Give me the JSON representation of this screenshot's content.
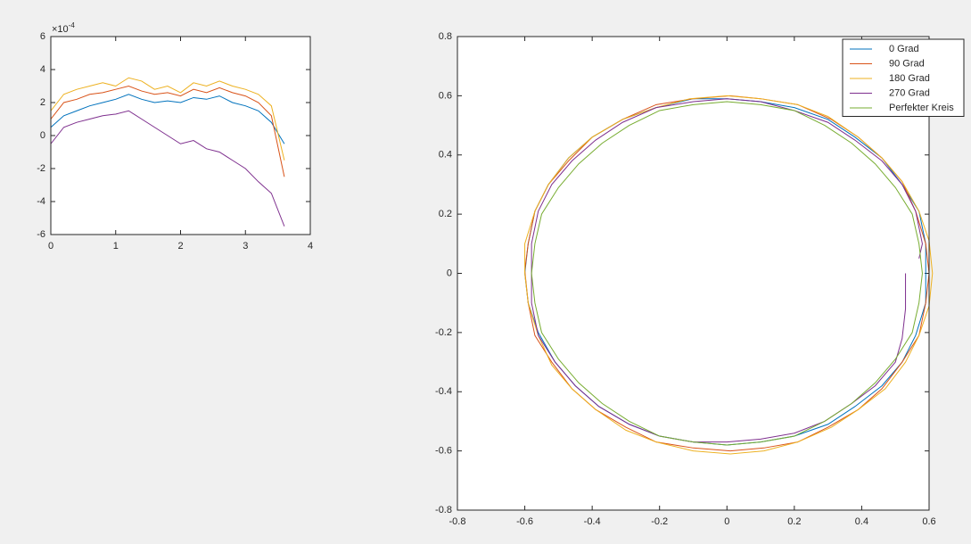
{
  "chart_data": [
    {
      "type": "line",
      "x": [
        0,
        0.2,
        0.4,
        0.6,
        0.8,
        1.0,
        1.2,
        1.4,
        1.6,
        1.8,
        2.0,
        2.2,
        2.4,
        2.6,
        2.8,
        3.0,
        3.2,
        3.4,
        3.6
      ],
      "series": [
        {
          "color": "#0072bd",
          "values": [
            0.5,
            1.2,
            1.5,
            1.8,
            2,
            2.2,
            2.5,
            2.2,
            2,
            2.1,
            2,
            2.3,
            2.2,
            2.4,
            2,
            1.8,
            1.5,
            0.8,
            -0.5
          ]
        },
        {
          "color": "#d95319",
          "values": [
            1,
            2,
            2.2,
            2.5,
            2.6,
            2.8,
            3,
            2.7,
            2.5,
            2.6,
            2.4,
            2.8,
            2.6,
            2.9,
            2.6,
            2.4,
            2,
            1.2,
            -2.5
          ]
        },
        {
          "color": "#edb120",
          "values": [
            1.5,
            2.5,
            2.8,
            3,
            3.2,
            3,
            3.5,
            3.3,
            2.8,
            3,
            2.6,
            3.2,
            3,
            3.3,
            3,
            2.8,
            2.5,
            1.8,
            -1.5
          ]
        },
        {
          "color": "#7e2f8e",
          "values": [
            -0.5,
            0.5,
            0.8,
            1,
            1.2,
            1.3,
            1.5,
            1,
            0.5,
            0,
            -0.5,
            -0.3,
            -0.8,
            -1,
            -1.5,
            -2,
            -2.8,
            -3.5,
            -5.5
          ]
        }
      ],
      "xlim": [
        0,
        4
      ],
      "xticks": [
        0,
        1,
        2,
        3,
        4
      ],
      "ylim": [
        -6,
        6
      ],
      "yticks": [
        -6,
        -4,
        -2,
        0,
        2,
        4,
        6
      ],
      "y_exponent_label": "×10",
      "y_exponent": "-4"
    },
    {
      "type": "line",
      "series": [
        {
          "name": "0 Grad",
          "color": "#0072bd",
          "x": [
            0.59,
            0.59,
            0.57,
            0.52,
            0.46,
            0.38,
            0.3,
            0.2,
            0.1,
            0.0,
            -0.1,
            -0.21,
            -0.31,
            -0.4,
            -0.47,
            -0.53,
            -0.57,
            -0.59,
            -0.6,
            -0.59,
            -0.56,
            -0.51,
            -0.45,
            -0.38,
            -0.29,
            -0.2,
            -0.1,
            0.0,
            0.1,
            0.2,
            0.3,
            0.38,
            0.46,
            0.52,
            0.56,
            0.59,
            0.59
          ],
          "values": [
            0.0,
            0.1,
            0.21,
            0.3,
            0.39,
            0.46,
            0.52,
            0.56,
            0.58,
            0.59,
            0.59,
            0.56,
            0.52,
            0.46,
            0.39,
            0.3,
            0.21,
            0.1,
            0.0,
            -0.1,
            -0.2,
            -0.3,
            -0.38,
            -0.45,
            -0.51,
            -0.55,
            -0.57,
            -0.58,
            -0.57,
            -0.55,
            -0.51,
            -0.45,
            -0.38,
            -0.3,
            -0.21,
            -0.1,
            0.0
          ]
        },
        {
          "name": "90 Grad",
          "color": "#d95319",
          "x": [
            0.6,
            0.59,
            0.56,
            0.52,
            0.46,
            0.39,
            0.31,
            0.21,
            0.1,
            0.01,
            -0.1,
            -0.21,
            -0.31,
            -0.4,
            -0.47,
            -0.53,
            -0.57,
            -0.59,
            -0.6,
            -0.59,
            -0.57,
            -0.52,
            -0.46,
            -0.39,
            -0.3,
            -0.21,
            -0.1,
            0.01,
            0.11,
            0.21,
            0.3,
            0.39,
            0.46,
            0.52,
            0.57,
            0.59,
            0.6
          ],
          "values": [
            0.0,
            0.1,
            0.21,
            0.31,
            0.39,
            0.46,
            0.52,
            0.57,
            0.59,
            0.6,
            0.59,
            0.57,
            0.52,
            0.46,
            0.38,
            0.3,
            0.21,
            0.1,
            0.01,
            -0.1,
            -0.21,
            -0.3,
            -0.39,
            -0.46,
            -0.52,
            -0.57,
            -0.59,
            -0.6,
            -0.59,
            -0.57,
            -0.52,
            -0.46,
            -0.39,
            -0.3,
            -0.21,
            -0.1,
            0.0
          ]
        },
        {
          "name": "180 Grad",
          "color": "#edb120",
          "x": [
            0.61,
            0.6,
            0.57,
            0.52,
            0.46,
            0.39,
            0.3,
            0.21,
            0.1,
            0.0,
            -0.11,
            -0.21,
            -0.31,
            -0.4,
            -0.47,
            -0.53,
            -0.57,
            -0.6,
            -0.6,
            -0.59,
            -0.56,
            -0.52,
            -0.46,
            -0.39,
            -0.3,
            -0.21,
            -0.1,
            0.01,
            0.11,
            0.21,
            0.31,
            0.39,
            0.47,
            0.53,
            0.57,
            0.6,
            0.61
          ],
          "values": [
            0.0,
            0.11,
            0.21,
            0.31,
            0.39,
            0.46,
            0.53,
            0.57,
            0.59,
            0.6,
            0.59,
            0.56,
            0.52,
            0.46,
            0.39,
            0.3,
            0.21,
            0.1,
            0.0,
            -0.1,
            -0.21,
            -0.31,
            -0.39,
            -0.46,
            -0.53,
            -0.57,
            -0.6,
            -0.61,
            -0.6,
            -0.57,
            -0.52,
            -0.46,
            -0.39,
            -0.3,
            -0.21,
            -0.11,
            0.0
          ]
        },
        {
          "name": "270 Grad",
          "color": "#7e2f8e",
          "x": [
            0.57,
            0.58,
            0.56,
            0.52,
            0.46,
            0.38,
            0.3,
            0.2,
            0.1,
            0.0,
            -0.1,
            -0.21,
            -0.31,
            -0.39,
            -0.46,
            -0.52,
            -0.56,
            -0.58,
            -0.58,
            -0.58,
            -0.56,
            -0.51,
            -0.45,
            -0.38,
            -0.29,
            -0.2,
            -0.1,
            0.0,
            0.1,
            0.2,
            0.29,
            0.37,
            0.44,
            0.5,
            0.52,
            0.53,
            0.53
          ],
          "values": [
            0.05,
            0.1,
            0.21,
            0.3,
            0.38,
            0.45,
            0.51,
            0.55,
            0.58,
            0.59,
            0.58,
            0.56,
            0.51,
            0.45,
            0.38,
            0.3,
            0.21,
            0.1,
            0.0,
            -0.1,
            -0.21,
            -0.3,
            -0.38,
            -0.45,
            -0.51,
            -0.55,
            -0.57,
            -0.57,
            -0.56,
            -0.54,
            -0.5,
            -0.44,
            -0.38,
            -0.3,
            -0.22,
            -0.12,
            0.0
          ]
        },
        {
          "name": "Perfekter Kreis",
          "color": "#77ac30",
          "x": [
            0.58,
            0.57,
            0.55,
            0.5,
            0.44,
            0.37,
            0.29,
            0.2,
            0.1,
            0,
            -0.1,
            -0.2,
            -0.29,
            -0.37,
            -0.44,
            -0.5,
            -0.55,
            -0.57,
            -0.58,
            -0.57,
            -0.55,
            -0.5,
            -0.44,
            -0.37,
            -0.29,
            -0.2,
            -0.1,
            0,
            0.1,
            0.2,
            0.29,
            0.37,
            0.44,
            0.5,
            0.55,
            0.57,
            0.58
          ],
          "values": [
            0,
            0.1,
            0.2,
            0.29,
            0.37,
            0.44,
            0.5,
            0.55,
            0.57,
            0.58,
            0.57,
            0.55,
            0.5,
            0.44,
            0.37,
            0.29,
            0.2,
            0.1,
            0,
            -0.1,
            -0.2,
            -0.29,
            -0.37,
            -0.44,
            -0.5,
            -0.55,
            -0.57,
            -0.58,
            -0.57,
            -0.55,
            -0.5,
            -0.44,
            -0.37,
            -0.29,
            -0.2,
            -0.1,
            0
          ]
        }
      ],
      "xlim": [
        -0.8,
        0.6
      ],
      "xticks": [
        -0.8,
        -0.6,
        -0.4,
        -0.2,
        0,
        0.2,
        0.4,
        0.6
      ],
      "ylim": [
        -0.8,
        0.8
      ],
      "yticks": [
        -0.8,
        -0.6,
        -0.4,
        -0.2,
        0,
        0.2,
        0.4,
        0.6,
        0.8
      ],
      "legend": "northeast"
    }
  ]
}
